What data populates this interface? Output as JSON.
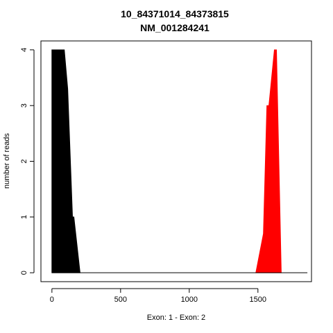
{
  "chart_data": {
    "type": "area",
    "title": "10_84371014_84373815",
    "subtitle": "NM_001284241",
    "xlabel": "Exon: 1 - Exon: 2",
    "ylabel": "number of reads",
    "xlim": [
      -80,
      1890
    ],
    "ylim": [
      -0.16,
      4.16
    ],
    "xticks": [
      0,
      500,
      1000,
      1500
    ],
    "yticks": [
      0,
      1,
      2,
      3,
      4
    ],
    "xtick_labels": [
      "0",
      "500",
      "1000",
      "1500"
    ],
    "ytick_labels": [
      "0",
      "1",
      "2",
      "3",
      "4"
    ],
    "baseline": {
      "x": [
        0,
        1860
      ],
      "y": 0
    },
    "series": [
      {
        "color": "#000000",
        "x": [
          0,
          0,
          90,
          115,
          150,
          160,
          205,
          205
        ],
        "y": [
          0,
          4,
          4,
          3.3,
          1.0,
          1.0,
          0,
          0
        ]
      },
      {
        "color": "#ff0000",
        "x": [
          1485,
          1540,
          1565,
          1580,
          1620,
          1635,
          1670,
          1670
        ],
        "y": [
          0,
          0.7,
          3.0,
          3.0,
          4.0,
          4.0,
          0,
          0
        ]
      }
    ]
  }
}
